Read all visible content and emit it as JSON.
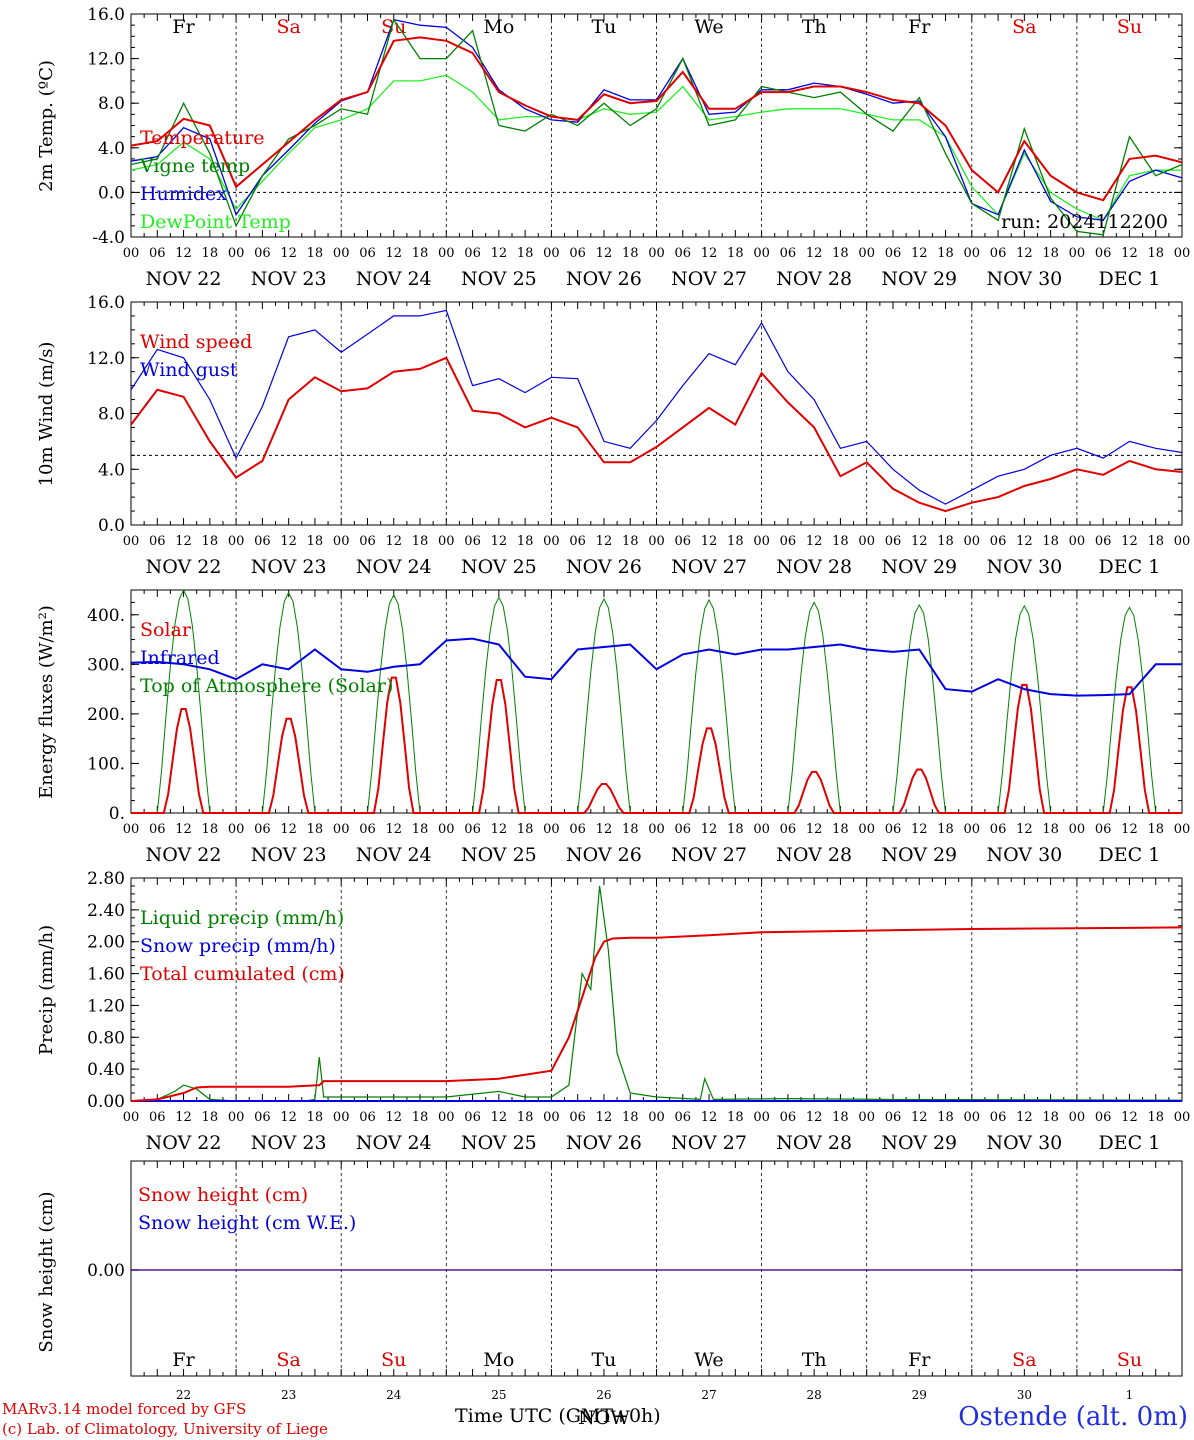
{
  "days": [
    "Fr",
    "Sa",
    "Su",
    "Mo",
    "Tu",
    "We",
    "Th",
    "Fr",
    "Sa",
    "Su"
  ],
  "day_colors": [
    "#000000",
    "#e00000",
    "#e00000",
    "#000000",
    "#000000",
    "#000000",
    "#000000",
    "#000000",
    "#e00000",
    "#e00000"
  ],
  "date_labels": [
    "NOV 22",
    "NOV 23",
    "NOV 24",
    "NOV 25",
    "NOV 26",
    "NOV 27",
    "NOV 28",
    "NOV 29",
    "NOV 30",
    "DEC  1"
  ],
  "day_numbers": [
    "22",
    "23",
    "24",
    "25",
    "26",
    "27",
    "28",
    "29",
    "30",
    "1"
  ],
  "hour_ticks": [
    "00",
    "06",
    "12",
    "18"
  ],
  "run_label": "run: 2024112200",
  "x_axis_title": "Time UTC (GMT+0h)",
  "x_axis_title_overprint": "NOW",
  "station": "Ostende (alt. 0m)",
  "credits": [
    "MARv3.14 model forced by GFS",
    "(c) Lab. of Climatology, University of Liege"
  ],
  "chart_data": [
    {
      "type": "line",
      "ylabel": "2m Temp. (ºC)",
      "ylim": [
        -4.0,
        16.0
      ],
      "yticks": [
        "16.0",
        "12.0",
        "8.0",
        "4.0",
        "0.0",
        "-4.0"
      ],
      "reference_line": 0.0,
      "x_unit": "hours since NOV 22 00 UTC",
      "series": [
        {
          "name": "Temperature",
          "color": "#e00000",
          "x": [
            0,
            6,
            12,
            18,
            24,
            30,
            36,
            42,
            48,
            54,
            60,
            66,
            72,
            78,
            84,
            90,
            96,
            102,
            108,
            114,
            120,
            126,
            132,
            138,
            144,
            150,
            156,
            162,
            168,
            174,
            180,
            186,
            192,
            198,
            204,
            210,
            216,
            222,
            228,
            234,
            240
          ],
          "values": [
            4.2,
            4.6,
            6.6,
            6.0,
            0.5,
            2.5,
            4.5,
            6.5,
            8.3,
            9.0,
            13.6,
            13.9,
            13.6,
            12.5,
            9.0,
            7.8,
            6.8,
            6.5,
            8.8,
            8.0,
            8.2,
            10.8,
            7.5,
            7.5,
            9.0,
            9.0,
            9.5,
            9.5,
            9.0,
            8.3,
            8.0,
            6.0,
            2.0,
            0.0,
            4.6,
            1.5,
            0.0,
            -0.7,
            3.0,
            3.3,
            2.7
          ]
        },
        {
          "name": "Vigne temp",
          "color": "#008000",
          "x": [
            0,
            6,
            12,
            18,
            24,
            30,
            36,
            42,
            48,
            54,
            60,
            66,
            72,
            78,
            84,
            90,
            96,
            102,
            108,
            114,
            120,
            126,
            132,
            138,
            144,
            150,
            156,
            162,
            168,
            174,
            180,
            186,
            192,
            198,
            204,
            210,
            216,
            222,
            228,
            234,
            240
          ],
          "values": [
            2.5,
            3.0,
            8.0,
            3.5,
            -3.0,
            1.5,
            4.8,
            6.0,
            7.5,
            7.0,
            15.5,
            12.0,
            12.0,
            14.5,
            6.0,
            5.5,
            7.0,
            6.0,
            8.0,
            6.0,
            7.5,
            12.0,
            6.0,
            6.5,
            9.5,
            9.0,
            8.5,
            9.0,
            7.0,
            5.5,
            8.5,
            3.5,
            -1.0,
            -2.5,
            5.7,
            -0.5,
            -3.5,
            -3.8,
            5.0,
            1.5,
            2.5
          ]
        },
        {
          "name": "Humidex",
          "color": "#0000e0",
          "x": [
            0,
            6,
            12,
            18,
            24,
            30,
            36,
            42,
            48,
            54,
            60,
            66,
            72,
            78,
            84,
            90,
            96,
            102,
            108,
            114,
            120,
            126,
            132,
            138,
            144,
            150,
            156,
            162,
            168,
            174,
            180,
            186,
            192,
            198,
            204,
            210,
            216,
            222,
            228,
            234,
            240
          ],
          "values": [
            2.8,
            3.2,
            5.8,
            4.8,
            -2.0,
            1.5,
            3.8,
            6.2,
            8.2,
            9.0,
            15.5,
            15.0,
            14.8,
            13.0,
            9.2,
            7.5,
            6.5,
            6.3,
            9.2,
            8.3,
            8.3,
            12.0,
            7.0,
            7.2,
            9.2,
            9.2,
            9.8,
            9.5,
            8.8,
            8.0,
            8.2,
            5.0,
            -1.0,
            -2.0,
            3.8,
            -0.8,
            -2.2,
            -2.5,
            1.0,
            2.0,
            1.3
          ]
        },
        {
          "name": "DewPoint Temp",
          "color": "#22ee22",
          "x": [
            0,
            6,
            12,
            18,
            24,
            30,
            36,
            42,
            48,
            54,
            60,
            66,
            72,
            78,
            84,
            90,
            96,
            102,
            108,
            114,
            120,
            126,
            132,
            138,
            144,
            150,
            156,
            162,
            168,
            174,
            180,
            186,
            192,
            198,
            204,
            210,
            216,
            222,
            228,
            234,
            240
          ],
          "values": [
            2.0,
            2.5,
            4.5,
            3.0,
            -1.5,
            1.0,
            3.5,
            5.8,
            6.5,
            7.5,
            10.0,
            10.0,
            10.5,
            9.0,
            6.5,
            6.8,
            6.8,
            6.5,
            7.5,
            7.0,
            7.2,
            9.5,
            6.5,
            6.8,
            7.2,
            7.5,
            7.5,
            7.5,
            7.0,
            6.5,
            6.5,
            5.0,
            0.5,
            -2.0,
            3.5,
            0.0,
            -1.5,
            -2.5,
            1.5,
            2.0,
            2.0
          ]
        }
      ]
    },
    {
      "type": "line",
      "ylabel": "10m Wind (m/s)",
      "ylim": [
        0.0,
        16.0
      ],
      "yticks": [
        "16.0",
        "12.0",
        "8.0",
        "4.0",
        "0.0"
      ],
      "reference_line": 5.0,
      "x_unit": "hours since NOV 22 00 UTC",
      "series": [
        {
          "name": "Wind speed",
          "color": "#e00000",
          "x": [
            0,
            6,
            12,
            18,
            24,
            30,
            36,
            42,
            48,
            54,
            60,
            66,
            72,
            78,
            84,
            90,
            96,
            102,
            108,
            114,
            120,
            126,
            132,
            138,
            144,
            150,
            156,
            162,
            168,
            174,
            180,
            186,
            192,
            198,
            204,
            210,
            216,
            222,
            228,
            234,
            240
          ],
          "values": [
            7.2,
            9.7,
            9.2,
            6.0,
            3.4,
            4.6,
            9.0,
            10.6,
            9.6,
            9.8,
            11.0,
            11.2,
            12.0,
            8.2,
            8.0,
            7.0,
            7.7,
            7.0,
            4.5,
            4.5,
            5.6,
            7.0,
            8.4,
            7.2,
            10.9,
            8.8,
            7.0,
            3.5,
            4.5,
            2.6,
            1.6,
            1.0,
            1.6,
            2.0,
            2.8,
            3.3,
            4.0,
            3.6,
            4.6,
            4.0,
            3.8
          ]
        },
        {
          "name": "Wind gust",
          "color": "#0000e0",
          "x": [
            0,
            6,
            12,
            18,
            24,
            30,
            36,
            42,
            48,
            54,
            60,
            66,
            72,
            78,
            84,
            90,
            96,
            102,
            108,
            114,
            120,
            126,
            132,
            138,
            144,
            150,
            156,
            162,
            168,
            174,
            180,
            186,
            192,
            198,
            204,
            210,
            216,
            222,
            228,
            234,
            240
          ],
          "values": [
            9.7,
            12.6,
            12.0,
            9.0,
            4.8,
            8.5,
            13.5,
            14.0,
            12.4,
            13.7,
            15.0,
            15.0,
            15.4,
            10.0,
            10.5,
            9.5,
            10.6,
            10.5,
            6.0,
            5.5,
            7.5,
            10.0,
            12.3,
            11.5,
            14.5,
            11.0,
            9.0,
            5.5,
            6.0,
            4.0,
            2.5,
            1.5,
            2.5,
            3.5,
            4.0,
            5.0,
            5.5,
            4.8,
            6.0,
            5.5,
            5.2
          ]
        }
      ]
    },
    {
      "type": "line",
      "ylabel": "Energy fluxes (W/m²)",
      "ylim": [
        0,
        450
      ],
      "yticks": [
        "400.",
        "300.",
        "200.",
        "100.",
        "0."
      ],
      "x_unit": "hours since NOV 22 00 UTC",
      "series": [
        {
          "name": "Solar",
          "color": "#e00000",
          "peaks": [
            215,
            195,
            280,
            275,
            60,
            175,
            85,
            90,
            265,
            260
          ]
        },
        {
          "name": "Infrared",
          "color": "#0000e0",
          "x": [
            0,
            6,
            12,
            18,
            24,
            30,
            36,
            42,
            48,
            54,
            60,
            66,
            72,
            78,
            84,
            90,
            96,
            102,
            108,
            114,
            120,
            126,
            132,
            138,
            144,
            150,
            156,
            162,
            168,
            174,
            180,
            186,
            192,
            198,
            204,
            210,
            216,
            222,
            228,
            234,
            240
          ],
          "values": [
            303,
            305,
            300,
            290,
            270,
            300,
            290,
            330,
            290,
            285,
            295,
            300,
            348,
            352,
            340,
            275,
            270,
            330,
            335,
            340,
            290,
            320,
            330,
            320,
            330,
            330,
            335,
            340,
            330,
            325,
            330,
            250,
            245,
            270,
            250,
            240,
            237,
            238,
            240,
            300,
            300
          ]
        },
        {
          "name": "Top of Atmosphere (Solar)",
          "color": "#008000",
          "peaks": [
            450,
            445,
            440,
            435,
            432,
            430,
            425,
            420,
            418,
            415
          ]
        }
      ]
    },
    {
      "type": "line",
      "ylabel": "Precip (mm/h)",
      "ylim": [
        0.0,
        2.8
      ],
      "yticks": [
        "2.80",
        "2.40",
        "2.00",
        "1.60",
        "1.20",
        "0.80",
        "0.40",
        "0.00"
      ],
      "x_unit": "hours since NOV 22 00 UTC",
      "series": [
        {
          "name": "Liquid precip (mm/h)",
          "color": "#008000",
          "x": [
            0,
            6,
            10,
            12,
            15,
            18,
            24,
            40,
            42,
            43,
            44,
            72,
            84,
            90,
            96,
            100,
            103,
            105,
            107,
            109,
            111,
            114,
            120,
            130,
            131,
            133,
            150,
            172,
            240
          ],
          "values": [
            0,
            0.02,
            0.12,
            0.2,
            0.15,
            0.02,
            0,
            0,
            0.02,
            0.55,
            0.05,
            0.05,
            0.12,
            0.05,
            0.05,
            0.2,
            1.6,
            1.4,
            2.7,
            1.9,
            0.6,
            0.1,
            0.05,
            0.02,
            0.28,
            0.02,
            0.03,
            0.02,
            0.01
          ]
        },
        {
          "name": "Snow precip (mm/h)",
          "color": "#0000e0",
          "x": [
            0,
            240
          ],
          "values": [
            0,
            0
          ]
        },
        {
          "name": "Total cumulated (cm)",
          "color": "#e00000",
          "x": [
            0,
            6,
            12,
            15,
            18,
            36,
            43,
            44,
            60,
            72,
            84,
            90,
            96,
            100,
            103,
            106,
            108,
            110,
            114,
            120,
            132,
            138,
            144,
            168,
            192,
            216,
            240
          ],
          "values": [
            0,
            0.02,
            0.1,
            0.17,
            0.18,
            0.18,
            0.2,
            0.25,
            0.25,
            0.25,
            0.28,
            0.33,
            0.38,
            0.8,
            1.3,
            1.8,
            2.0,
            2.04,
            2.05,
            2.05,
            2.08,
            2.1,
            2.12,
            2.14,
            2.16,
            2.17,
            2.18
          ]
        }
      ]
    },
    {
      "type": "line",
      "ylabel": "Snow height (cm)",
      "yticks": [
        "0.00"
      ],
      "x_unit": "hours since NOV 22 00 UTC",
      "series": [
        {
          "name": "Snow height (cm)",
          "color": "#e00000",
          "x": [
            0,
            240
          ],
          "values": [
            0,
            0
          ]
        },
        {
          "name": "Snow height (cm W.E.)",
          "color": "#0000e0",
          "x": [
            0,
            240
          ],
          "values": [
            0,
            0
          ]
        }
      ]
    }
  ]
}
